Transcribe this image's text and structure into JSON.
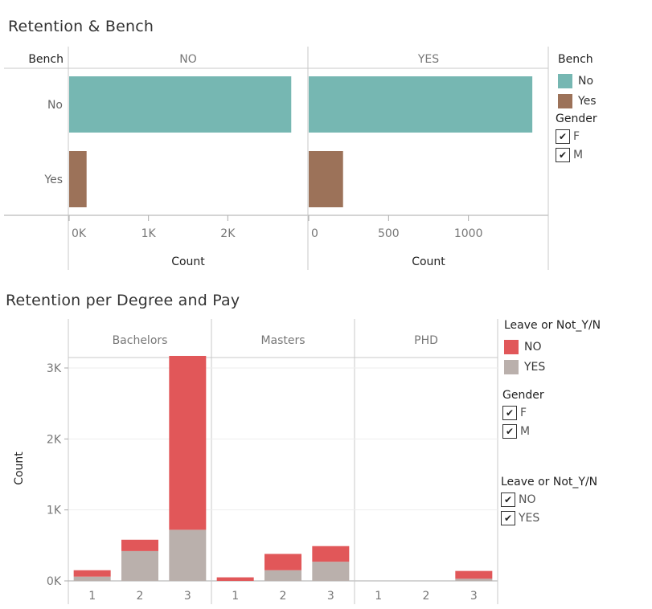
{
  "titles": {
    "top": "Retention & Bench",
    "bottom": "Retention per Degree and Pay"
  },
  "colors": {
    "bench_no": "#76b7b2",
    "bench_yes": "#9c7259",
    "leave_no": "#e15759",
    "leave_yes": "#bab0ac"
  },
  "legends": {
    "bench": {
      "title": "Bench",
      "items": [
        "No",
        "Yes"
      ]
    },
    "gender_top": {
      "title": "Gender",
      "items": [
        "F",
        "M"
      ]
    },
    "leave_color": {
      "title": "Leave or Not_Y/N",
      "items": [
        "NO",
        "YES"
      ]
    },
    "gender_bottom": {
      "title": "Gender",
      "items": [
        "F",
        "M"
      ]
    },
    "leave_filter": {
      "title": "Leave or Not_Y/N",
      "items": [
        "NO",
        "YES"
      ]
    }
  },
  "chart_data": [
    {
      "type": "bar",
      "orientation": "horizontal",
      "title": "Retention & Bench",
      "row_header": "Bench",
      "categories": [
        "No",
        "Yes"
      ],
      "xlabel": "Count",
      "panels": [
        {
          "name": "NO",
          "values": [
            2800,
            220
          ],
          "xlim": [
            0,
            3000
          ],
          "ticks": [
            0,
            1000,
            2000
          ],
          "tick_labels": [
            "0K",
            "1K",
            "2K"
          ]
        },
        {
          "name": "YES",
          "values": [
            1400,
            215
          ],
          "xlim": [
            0,
            1500
          ],
          "ticks": [
            0,
            500,
            1000
          ],
          "tick_labels": [
            "0",
            "500",
            "1000"
          ]
        }
      ]
    },
    {
      "type": "bar",
      "stacked": true,
      "title": "Retention per Degree and Pay",
      "ylabel": "Count",
      "ylim": [
        0,
        3500
      ],
      "yticks": [
        0,
        1000,
        2000,
        3000
      ],
      "ytick_labels": [
        "0K",
        "1K",
        "2K",
        "3K"
      ],
      "panels": [
        "Bachelors",
        "Masters",
        "PHD"
      ],
      "categories": [
        "1",
        "2",
        "3"
      ],
      "series": [
        {
          "name": "YES",
          "values": [
            [
              60,
              420,
              720
            ],
            [
              0,
              150,
              270
            ],
            [
              0,
              0,
              30
            ]
          ]
        },
        {
          "name": "NO",
          "values": [
            [
              90,
              160,
              2450
            ],
            [
              50,
              230,
              220
            ],
            [
              0,
              0,
              110
            ]
          ]
        }
      ]
    }
  ]
}
